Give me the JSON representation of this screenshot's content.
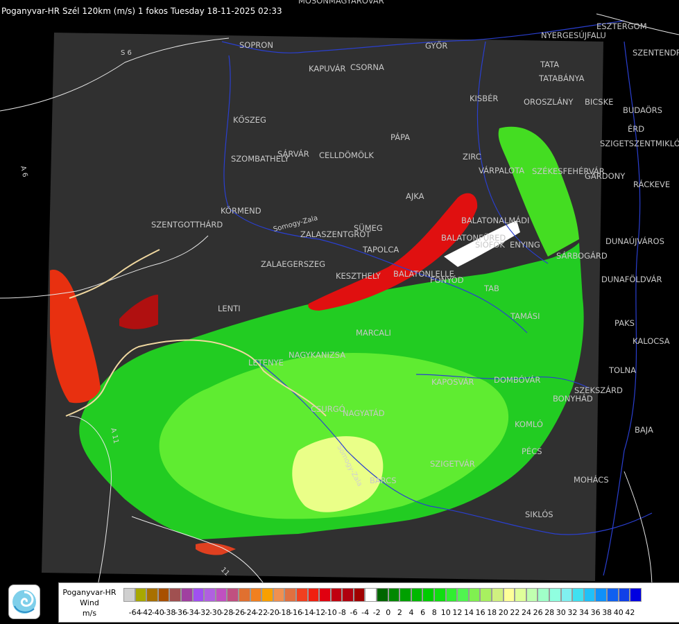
{
  "header": {
    "title": "Poganyvar-HR Szél 120km (m/s) 1 fokos Tuesday 18-11-2025 02:33"
  },
  "map": {
    "cities": [
      "MOSONMAGYARÓVÁR",
      "SOPRON",
      "KAPUVÁR",
      "CSORNA",
      "GYŐR",
      "NYERGESÚJFALU",
      "ESZTERGOM",
      "SZENTENDRE",
      "TATA",
      "TATABÁNYA",
      "KISBÉR",
      "OROSZLÁNY",
      "BICSKE",
      "BUDAÖRS",
      "ÉRD",
      "SZIGETSZENTMIKLÓS",
      "KŐSZEG",
      "SZOMBATHELY",
      "SÁRVÁR",
      "CELLDÖMÖLK",
      "PÁPA",
      "ZIRC",
      "VÁRPALOTA",
      "SZÉKESFEHÉRVÁR",
      "GÁRDONY",
      "RÁCKEVE",
      "AJKA",
      "KÖRMEND",
      "SZENTGOTTHÁRD",
      "SÜMEG",
      "BALATONALMÁDI",
      "ZALASZENTGRÓT",
      "TAPOLCA",
      "BALATONFÜRED",
      "SIÓFOK",
      "ENYING",
      "DUNAÚJVÁROS",
      "ZALAEGERSZEG",
      "SÁRBOGÁRD",
      "KESZTHELY",
      "BALATONLELLE",
      "FONYÓD",
      "TAB",
      "DUNAFÖLDVÁR",
      "LENTI",
      "TAMÁSI",
      "PAKS",
      "MARCALI",
      "KALOCSA",
      "LETENYE",
      "NAGYKANIZSA",
      "KAPOSVÁR",
      "DOMBÓVÁR",
      "TOLNA",
      "SZEKSZÁRD",
      "CSURGÓ",
      "NAGYATÁD",
      "BONYHÁD",
      "KOMLÓ",
      "BAJA",
      "PÉCS",
      "SZIGETVÁR",
      "BARCS",
      "MOHÁCS",
      "SIKLÓS"
    ],
    "roads": [
      "S 6",
      "A 6",
      "A 11",
      "11",
      "Somogy-Zala",
      "Somogy-Zala"
    ]
  },
  "legend": {
    "station": "Poganyvar-HR",
    "product": "Wind",
    "unit": "m/s",
    "colors": [
      "#d0d0d0",
      "#a8a800",
      "#a87000",
      "#a85000",
      "#a05050",
      "#a040a0",
      "#a050f0",
      "#b060e0",
      "#c050c0",
      "#c05080",
      "#e07030",
      "#f08020",
      "#f8a000",
      "#f09050",
      "#e07040",
      "#f04020",
      "#f02010",
      "#e00010",
      "#c00010",
      "#b00010",
      "#a00000",
      "#ffffff",
      "#006600",
      "#008800",
      "#00a000",
      "#00b800",
      "#00cc00",
      "#10dd10",
      "#30ee30",
      "#50f550",
      "#80f050",
      "#a8f060",
      "#d0f080",
      "#ffff99",
      "#e0ff9a",
      "#c0ffb0",
      "#a0ffc8",
      "#90ffe0",
      "#80f0f0",
      "#40e0f0",
      "#20c0f8",
      "#1090f8",
      "#1060f0",
      "#1040e8",
      "#0000e0"
    ],
    "ticks": [
      "-64",
      "-42",
      "-40",
      "-38",
      "-36",
      "-34",
      "-32",
      "-30",
      "-28",
      "-26",
      "-24",
      "-22",
      "-20",
      "-18",
      "-16",
      "-14",
      "-12",
      "-10",
      "-8",
      "-6",
      "-4",
      "-2",
      "0",
      "2",
      "4",
      "6",
      "8",
      "10",
      "12",
      "14",
      "16",
      "18",
      "20",
      "22",
      "24",
      "26",
      "28",
      "30",
      "32",
      "34",
      "36",
      "38",
      "40",
      "42"
    ]
  }
}
